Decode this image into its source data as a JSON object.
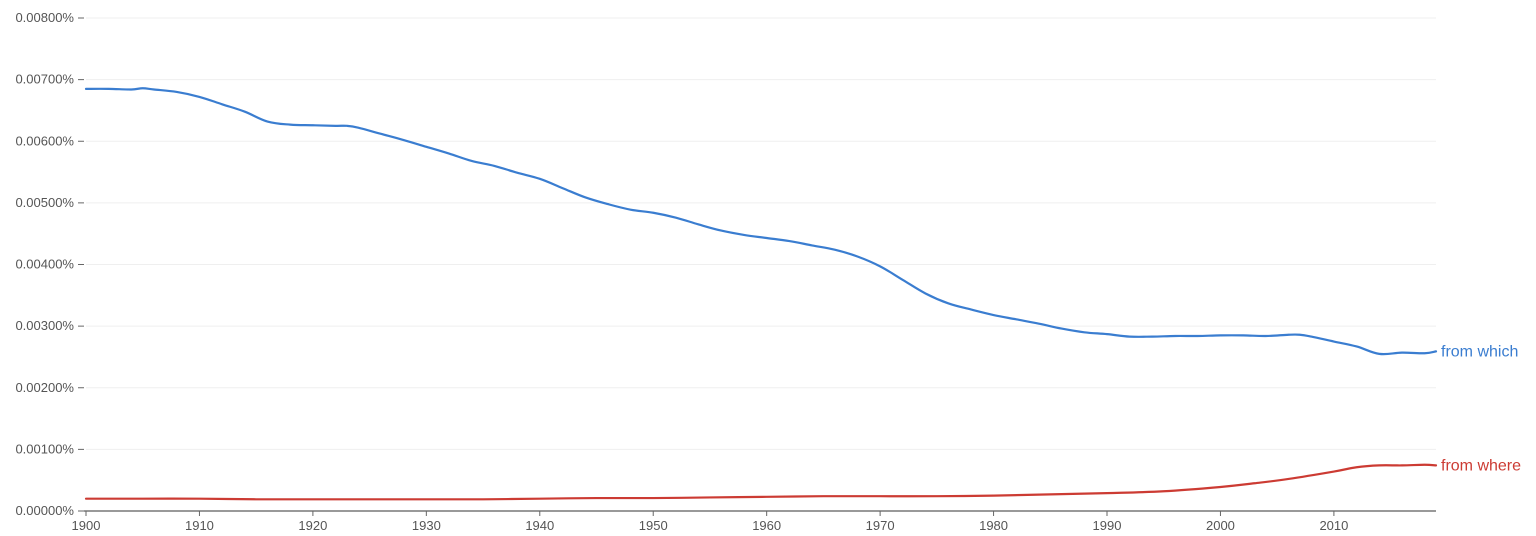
{
  "chart_data": {
    "type": "line",
    "title": "",
    "xlabel": "",
    "ylabel": "",
    "xlim": [
      1900,
      2019
    ],
    "ylim": [
      0,
      0.008
    ],
    "y_tick_values": [
      0,
      0.001,
      0.002,
      0.003,
      0.004,
      0.005,
      0.006,
      0.007,
      0.008
    ],
    "y_tick_labels": [
      "0.00000%",
      "0.00100%",
      "0.00200%",
      "0.00300%",
      "0.00400%",
      "0.00500%",
      "0.00600%",
      "0.00700%",
      "0.00800%"
    ],
    "x_tick_values": [
      1900,
      1910,
      1920,
      1930,
      1940,
      1950,
      1960,
      1970,
      1980,
      1990,
      2000,
      2010
    ],
    "x_tick_labels": [
      "1900",
      "1910",
      "1920",
      "1930",
      "1940",
      "1950",
      "1960",
      "1970",
      "1980",
      "1990",
      "2000",
      "2010"
    ],
    "grid": true,
    "legend": "inline labels at line ends (right)",
    "series": [
      {
        "name": "from which",
        "color": "#3a7dd0",
        "x": [
          1900,
          1902,
          1904,
          1905,
          1906,
          1908,
          1910,
          1912,
          1914,
          1916,
          1918,
          1920,
          1922,
          1923,
          1924,
          1926,
          1928,
          1930,
          1932,
          1934,
          1936,
          1938,
          1940,
          1942,
          1944,
          1946,
          1948,
          1950,
          1952,
          1954,
          1956,
          1958,
          1960,
          1962,
          1964,
          1966,
          1968,
          1970,
          1972,
          1974,
          1976,
          1978,
          1980,
          1982,
          1984,
          1986,
          1988,
          1990,
          1992,
          1994,
          1996,
          1998,
          2000,
          2002,
          2004,
          2006,
          2007,
          2008,
          2010,
          2012,
          2014,
          2016,
          2018,
          2019
        ],
        "y": [
          0.00685,
          0.00685,
          0.00684,
          0.00686,
          0.00684,
          0.0068,
          0.00672,
          0.0066,
          0.00648,
          0.00632,
          0.00627,
          0.00626,
          0.00625,
          0.00625,
          0.00622,
          0.00612,
          0.00602,
          0.00591,
          0.0058,
          0.00568,
          0.0056,
          0.00549,
          0.00539,
          0.00524,
          0.00509,
          0.00498,
          0.00489,
          0.00484,
          0.00476,
          0.00465,
          0.00455,
          0.00448,
          0.00443,
          0.00438,
          0.00431,
          0.00424,
          0.00413,
          0.00397,
          0.00375,
          0.00353,
          0.00337,
          0.00327,
          0.00318,
          0.00311,
          0.00304,
          0.00296,
          0.0029,
          0.00287,
          0.00283,
          0.00283,
          0.00284,
          0.00284,
          0.00285,
          0.00285,
          0.00284,
          0.00286,
          0.00286,
          0.00283,
          0.00275,
          0.00267,
          0.00255,
          0.00257,
          0.00256,
          0.00259
        ]
      },
      {
        "name": "from where",
        "color": "#cc3b33",
        "x": [
          1900,
          1905,
          1910,
          1915,
          1920,
          1925,
          1930,
          1935,
          1940,
          1945,
          1950,
          1955,
          1960,
          1965,
          1970,
          1975,
          1980,
          1985,
          1990,
          1995,
          2000,
          2003,
          2006,
          2010,
          2012,
          2014,
          2016,
          2018,
          2019
        ],
        "y": [
          0.0002,
          0.0002,
          0.0002,
          0.00019,
          0.00019,
          0.00019,
          0.00019,
          0.00019,
          0.0002,
          0.00021,
          0.00021,
          0.00022,
          0.00023,
          0.00024,
          0.00024,
          0.00024,
          0.00025,
          0.00027,
          0.00029,
          0.00032,
          0.00039,
          0.00045,
          0.00052,
          0.00064,
          0.00071,
          0.00074,
          0.00074,
          0.00075,
          0.00074
        ]
      }
    ]
  }
}
